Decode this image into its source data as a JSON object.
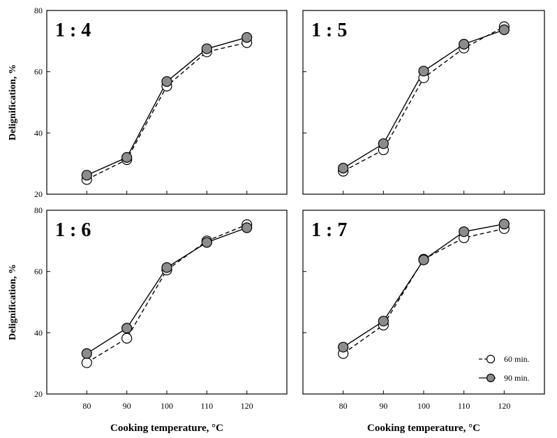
{
  "chart_data": [
    {
      "type": "line",
      "title": "1 : 4",
      "xlabel": "",
      "ylabel": "Delignification, %",
      "x": [
        80,
        90,
        100,
        110,
        120
      ],
      "xlim": [
        70,
        130
      ],
      "ylim": [
        20,
        80
      ],
      "xticks": [],
      "yticks": [
        "20",
        "40",
        "60",
        "80"
      ],
      "grid": false,
      "series": [
        {
          "name": "60 min.",
          "values": [
            24.8,
            31.3,
            55.3,
            66.5,
            69.5
          ]
        },
        {
          "name": "90 min.",
          "values": [
            26.2,
            32.0,
            56.8,
            67.5,
            71.2
          ]
        }
      ]
    },
    {
      "type": "line",
      "title": "1 : 5",
      "xlabel": "",
      "ylabel": "",
      "x": [
        80,
        90,
        100,
        110,
        120
      ],
      "xlim": [
        70,
        130
      ],
      "ylim": [
        20,
        80
      ],
      "xticks": [],
      "yticks": [],
      "grid": false,
      "series": [
        {
          "name": "60 min.",
          "values": [
            27.5,
            34.5,
            58.0,
            67.7,
            74.7
          ]
        },
        {
          "name": "90 min.",
          "values": [
            28.5,
            36.5,
            60.2,
            69.0,
            73.7
          ]
        }
      ]
    },
    {
      "type": "line",
      "title": "1 : 6",
      "xlabel": "Cooking temperature, °C",
      "ylabel": "Delignification, %",
      "x": [
        80,
        90,
        100,
        110,
        120
      ],
      "xlim": [
        70,
        130
      ],
      "ylim": [
        20,
        80
      ],
      "xticks": [
        "80",
        "90",
        "100",
        "110",
        "120"
      ],
      "yticks": [
        "20",
        "40",
        "60",
        "80"
      ],
      "grid": false,
      "series": [
        {
          "name": "60 min.",
          "values": [
            30.2,
            38.2,
            60.5,
            70.0,
            75.3
          ]
        },
        {
          "name": "90 min.",
          "values": [
            33.2,
            41.5,
            61.3,
            69.5,
            74.3
          ]
        }
      ]
    },
    {
      "type": "line",
      "title": "1 : 7",
      "xlabel": "Cooking temperature, °C",
      "ylabel": "",
      "x": [
        80,
        90,
        100,
        110,
        120
      ],
      "xlim": [
        70,
        130
      ],
      "ylim": [
        20,
        80
      ],
      "xticks": [
        "80",
        "90",
        "100",
        "110",
        "120"
      ],
      "yticks": [],
      "grid": false,
      "series": [
        {
          "name": "60 min.",
          "values": [
            33.2,
            42.5,
            64.0,
            71.0,
            74.0
          ]
        },
        {
          "name": "90 min.",
          "values": [
            35.3,
            43.8,
            63.8,
            73.0,
            75.5
          ]
        }
      ]
    }
  ],
  "legend": {
    "placement": "bottom-right of lower-right panel",
    "items": [
      {
        "label": "60 min.",
        "line": "dashed",
        "marker": "open-circle"
      },
      {
        "label": "90 min.",
        "line": "solid",
        "marker": "filled-circle"
      }
    ]
  },
  "colors": {
    "line": "#000000",
    "filled_marker": "#8c8c8c",
    "open_marker": "#ffffff"
  }
}
